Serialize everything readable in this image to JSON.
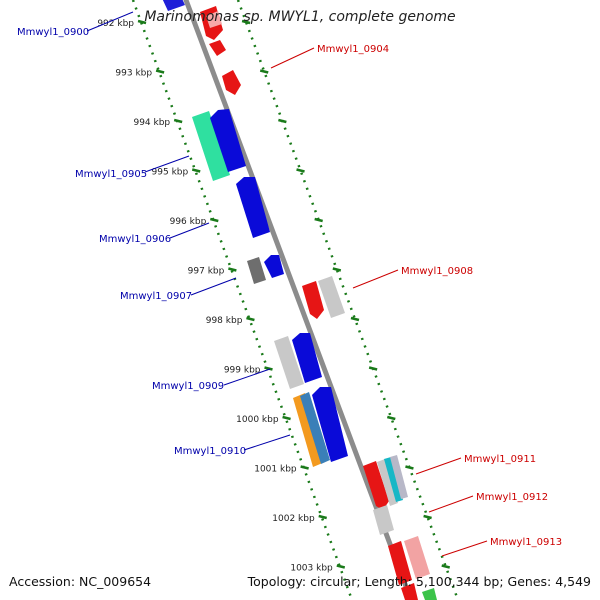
{
  "title": "Marinomonas sp. MWYL1, complete genome",
  "footer": {
    "accession": "Accession: NC_009654",
    "summary": "Topology: circular; Length: 5,100,344 bp; Genes: 4,549"
  },
  "colors": {
    "forward_label": "#cc0000",
    "reverse_label": "#0000aa",
    "backbone": "#8c8c8c",
    "ruler": "#1a7a1a"
  },
  "ticks": [
    {
      "label": "992 kbp",
      "kbp": 992
    },
    {
      "label": "993 kbp",
      "kbp": 993
    },
    {
      "label": "994 kbp",
      "kbp": 994
    },
    {
      "label": "995 kbp",
      "kbp": 995
    },
    {
      "label": "996 kbp",
      "kbp": 996
    },
    {
      "label": "997 kbp",
      "kbp": 997
    },
    {
      "label": "998 kbp",
      "kbp": 998
    },
    {
      "label": "999 kbp",
      "kbp": 999
    },
    {
      "label": "1000 kbp",
      "kbp": 1000
    },
    {
      "label": "1001 kbp",
      "kbp": 1001
    },
    {
      "label": "1002 kbp",
      "kbp": 1002
    },
    {
      "label": "1003 kbp",
      "kbp": 1003
    }
  ],
  "gene_labels": [
    {
      "text": "Mmwyl1_0900",
      "strand": "reverse"
    },
    {
      "text": "Mmwyl1_0904",
      "strand": "forward"
    },
    {
      "text": "Mmwyl1_0905",
      "strand": "reverse"
    },
    {
      "text": "Mmwyl1_0906",
      "strand": "reverse"
    },
    {
      "text": "Mmwyl1_0907",
      "strand": "reverse"
    },
    {
      "text": "Mmwyl1_0908",
      "strand": "forward"
    },
    {
      "text": "Mmwyl1_0909",
      "strand": "reverse"
    },
    {
      "text": "Mmwyl1_0910",
      "strand": "reverse"
    },
    {
      "text": "Mmwyl1_0911",
      "strand": "forward"
    },
    {
      "text": "Mmwyl1_0912",
      "strand": "forward"
    },
    {
      "text": "Mmwyl1_0913",
      "strand": "forward"
    }
  ]
}
